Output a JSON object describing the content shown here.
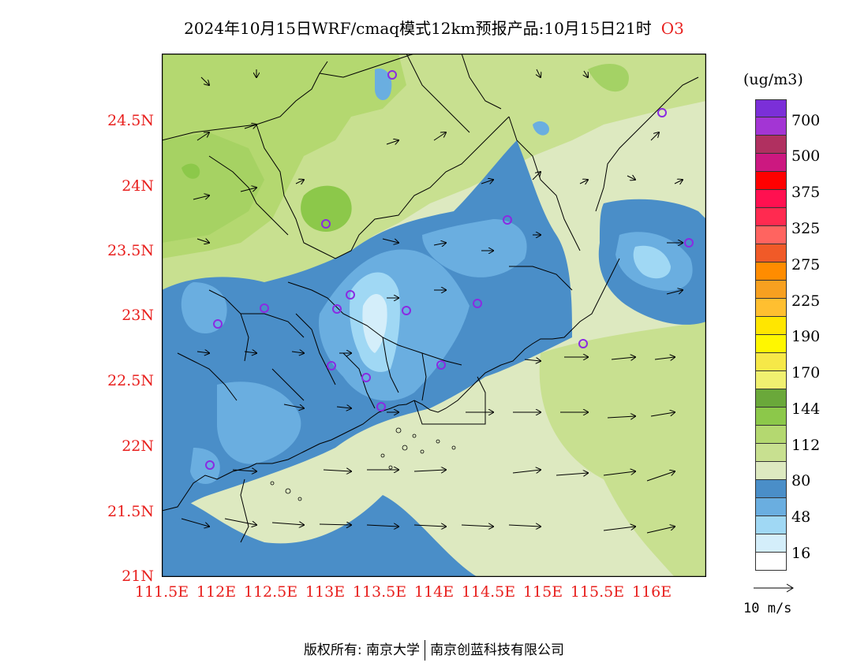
{
  "title": {
    "text": "2024年10月15日WRF/cmaq模式12km预报产品:10月15日21时",
    "species": "O3"
  },
  "lat_labels": [
    "24.5N",
    "24N",
    "23.5N",
    "23N",
    "22.5N",
    "22N",
    "21.5N",
    "21N"
  ],
  "lon_labels": [
    "111.5E",
    "112E",
    "112.5E",
    "113E",
    "113.5E",
    "114E",
    "114.5E",
    "115E",
    "115.5E",
    "116E"
  ],
  "colorbar": {
    "unit": "(ug/m3)",
    "labels": [
      "700",
      "500",
      "375",
      "325",
      "275",
      "225",
      "190",
      "170",
      "144",
      "112",
      "80",
      "48",
      "16"
    ],
    "colors": [
      "#7b2fd8",
      "#a335d4",
      "#b03060",
      "#cc1880",
      "#ff0000",
      "#ff1050",
      "#ff2a50",
      "#ff6460",
      "#f05a28",
      "#ff8c00",
      "#f7a020",
      "#ffbf30",
      "#ffe600",
      "#fff700",
      "#f6e848",
      "#f0f070",
      "#6aa83a",
      "#8cc84a",
      "#b4d870",
      "#c8e090",
      "#dde9c0",
      "#4a8ec8",
      "#6aaee0",
      "#a0d8f4",
      "#d4eefa",
      "#ffffff"
    ]
  },
  "wind_reference": {
    "label": "10 m/s"
  },
  "footer": {
    "left": "版权所有: 南京大学",
    "right": "南京创蓝科技有限公司"
  }
}
